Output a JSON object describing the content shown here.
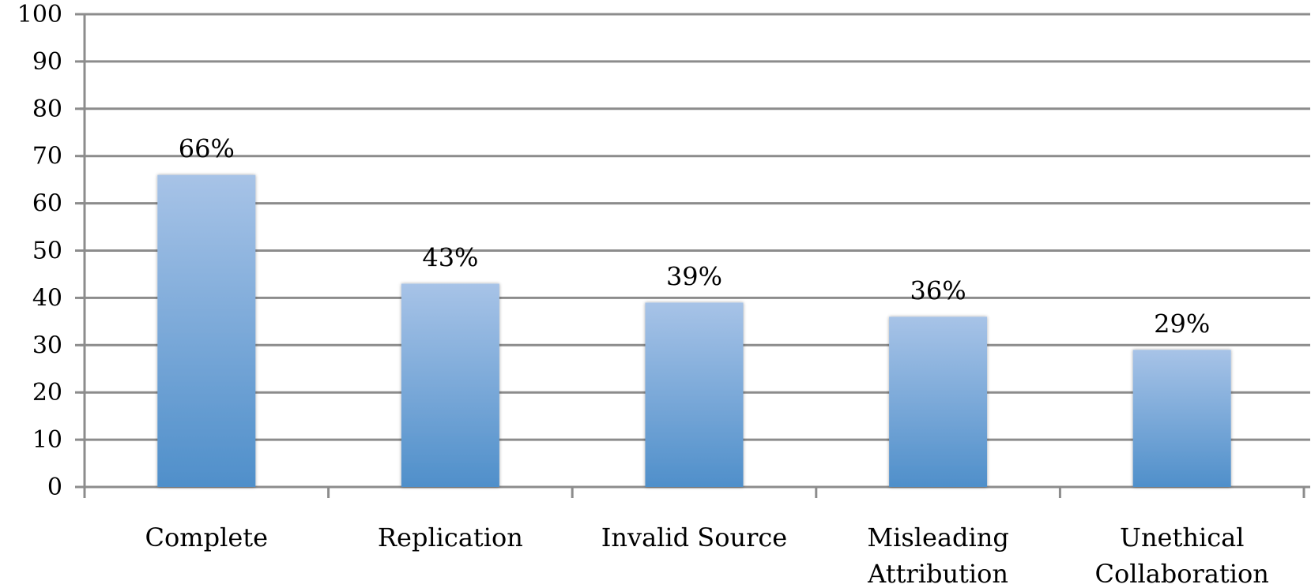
{
  "chart_data": {
    "type": "bar",
    "title": "",
    "xlabel": "",
    "ylabel": "",
    "categories": [
      [
        "Complete"
      ],
      [
        "Replication"
      ],
      [
        "Invalid Source"
      ],
      [
        "Misleading",
        "Attribution"
      ],
      [
        "Unethical",
        "Collaboration"
      ]
    ],
    "values": [
      66,
      43,
      39,
      36,
      29
    ],
    "data_labels": [
      "66%",
      "43%",
      "39%",
      "36%",
      "29%"
    ],
    "yticks": [
      "0",
      "10",
      "20",
      "30",
      "40",
      "50",
      "60",
      "70",
      "80",
      "90",
      "100"
    ],
    "ylim": [
      0,
      100
    ],
    "grid": true,
    "legend": "none",
    "colors": {
      "bar_top": "#a7c3e7",
      "bar_bottom": "#4f8fca",
      "grid": "#8c8c8c",
      "axis": "#8c8c8c"
    }
  }
}
